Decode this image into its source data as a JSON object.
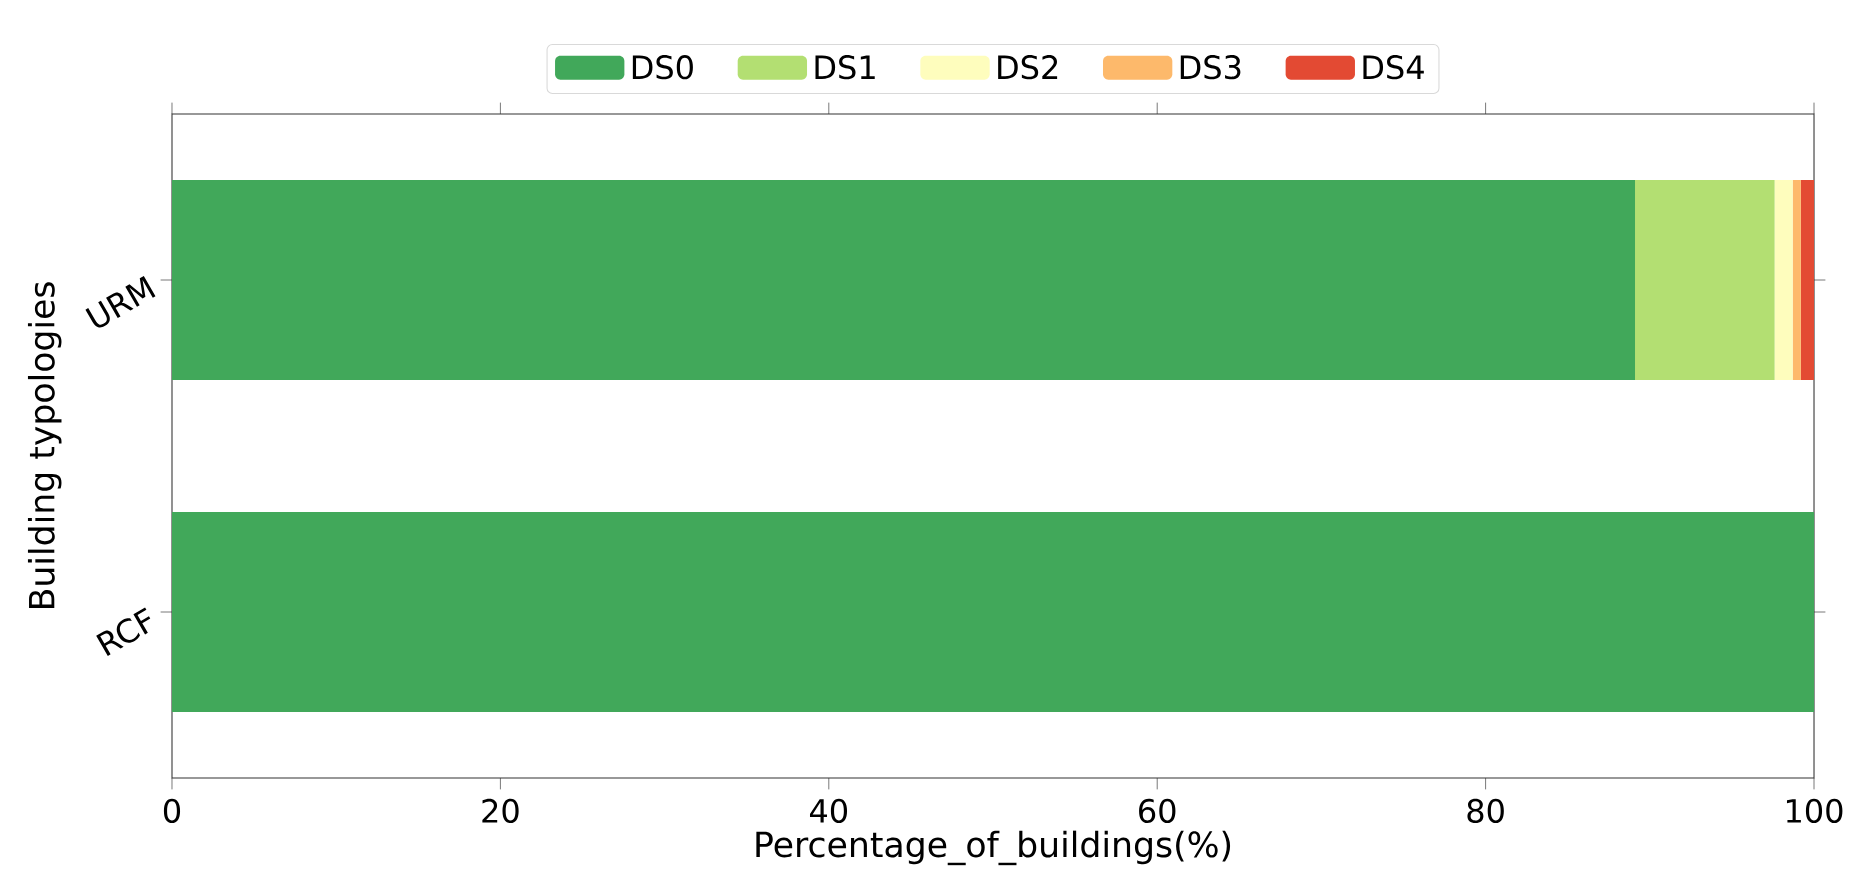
{
  "chart_data": {
    "type": "bar",
    "orientation": "horizontal",
    "stacked": true,
    "xlabel": "Percentage_of_buildings(%)",
    "ylabel": "Building typologies",
    "categories": [
      "URM",
      "RCF"
    ],
    "series": [
      {
        "name": "DS0",
        "color": "#41a85a",
        "values": [
          89.1,
          100
        ]
      },
      {
        "name": "DS1",
        "color": "#b3df72",
        "values": [
          8.5,
          0
        ]
      },
      {
        "name": "DS2",
        "color": "#fefdbd",
        "values": [
          1.1,
          0
        ]
      },
      {
        "name": "DS3",
        "color": "#fdb96b",
        "values": [
          0.5,
          0
        ]
      },
      {
        "name": "DS4",
        "color": "#e34a33",
        "values": [
          0.8,
          0
        ]
      }
    ],
    "xlim": [
      0,
      100
    ],
    "xticks": [
      0,
      20,
      40,
      60,
      80,
      100
    ],
    "legend": "top",
    "grid": false
  }
}
